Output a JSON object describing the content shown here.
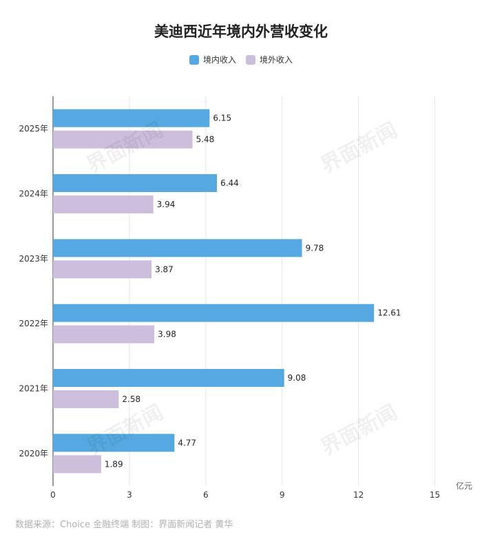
{
  "chart_data": {
    "type": "bar",
    "orientation": "horizontal",
    "title": "美迪西近年境内外营收变化",
    "unit_label": "亿元",
    "categories": [
      "2025年",
      "2024年",
      "2023年",
      "2022年",
      "2021年",
      "2020年"
    ],
    "series": [
      {
        "name": "境内收入",
        "color": "#55a9e0",
        "values": [
          6.15,
          6.44,
          9.78,
          12.61,
          9.08,
          4.77
        ]
      },
      {
        "name": "境外收入",
        "color": "#cdbfdc",
        "values": [
          5.48,
          3.94,
          3.87,
          3.98,
          2.58,
          1.89
        ]
      }
    ],
    "xlim": [
      0,
      16.5
    ],
    "xticks": [
      0,
      3,
      6,
      9,
      12,
      15
    ],
    "grid": true,
    "legend_position": "top-center"
  },
  "footer": "数据来源：Choice 金融终端 制图：界面新闻记者 黄华",
  "watermark": "界面新闻"
}
